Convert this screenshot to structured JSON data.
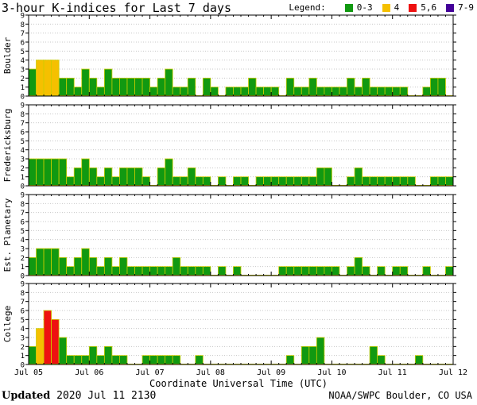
{
  "title": "3-hour K-indices for Last 7 days",
  "legend": {
    "label": "Legend:",
    "items": [
      {
        "label": "0-3",
        "color": "#119911"
      },
      {
        "label": "4",
        "color": "#f5c000"
      },
      {
        "label": "5,6",
        "color": "#ee1111"
      },
      {
        "label": "7-9",
        "color": "#440099"
      }
    ]
  },
  "footer": {
    "updated_label": "Updated",
    "updated_value": "2020 Jul 11 2130",
    "source": "NOAA/SWPC Boulder, CO USA"
  },
  "chart_data": {
    "type": "bar",
    "title": "3-hour K-indices for Last 7 days",
    "xlabel": "Coordinate Universal Time (UTC)",
    "x_tick_labels": [
      "Jul 05",
      "Jul 06",
      "Jul 07",
      "Jul 08",
      "Jul 09",
      "Jul 10",
      "Jul 11",
      "Jul 12"
    ],
    "y_tick_labels": [
      "0",
      "1",
      "2",
      "3",
      "4",
      "5",
      "6",
      "7",
      "8",
      "9"
    ],
    "ylim": [
      0,
      9
    ],
    "interval": "3-hour",
    "panels": [
      {
        "name": "Boulder",
        "values": [
          3,
          4,
          4,
          4,
          2,
          2,
          1,
          3,
          2,
          1,
          3,
          2,
          2,
          2,
          2,
          2,
          1,
          2,
          3,
          1,
          1,
          2,
          0,
          2,
          1,
          0,
          1,
          1,
          1,
          2,
          1,
          1,
          1,
          0,
          2,
          1,
          1,
          2,
          1,
          1,
          1,
          1,
          2,
          1,
          2,
          1,
          1,
          1,
          1,
          1,
          0,
          0,
          1,
          2,
          2,
          0
        ]
      },
      {
        "name": "Fredericksburg",
        "values": [
          3,
          3,
          3,
          3,
          3,
          1,
          2,
          3,
          2,
          1,
          2,
          1,
          2,
          2,
          2,
          1,
          0,
          2,
          3,
          1,
          1,
          2,
          1,
          1,
          0,
          1,
          0,
          1,
          1,
          0,
          1,
          1,
          1,
          1,
          1,
          1,
          1,
          1,
          2,
          2,
          0,
          0,
          1,
          2,
          1,
          1,
          1,
          1,
          1,
          1,
          1,
          0,
          0,
          1,
          1,
          1,
          0
        ]
      },
      {
        "name": "Est. Planetary",
        "values": [
          2,
          3,
          3,
          3,
          2,
          1,
          2,
          3,
          2,
          1,
          2,
          1,
          2,
          1,
          1,
          1,
          1,
          1,
          1,
          2,
          1,
          1,
          1,
          1,
          0,
          1,
          0,
          1,
          0,
          0,
          0,
          0,
          0,
          1,
          1,
          1,
          1,
          1,
          1,
          1,
          1,
          0,
          1,
          2,
          1,
          0,
          1,
          0,
          1,
          1,
          0,
          0,
          1,
          0,
          0,
          1
        ]
      },
      {
        "name": "College",
        "values": [
          2,
          4,
          6,
          5,
          3,
          1,
          1,
          1,
          2,
          1,
          2,
          1,
          1,
          0,
          0,
          1,
          1,
          1,
          1,
          1,
          0,
          0,
          1,
          0,
          0,
          0,
          0,
          0,
          0,
          0,
          0,
          0,
          0,
          0,
          1,
          0,
          2,
          2,
          3,
          0,
          0,
          0,
          0,
          0,
          0,
          2,
          1,
          0,
          0,
          0,
          0,
          1,
          0,
          0,
          0,
          0,
          0
        ]
      }
    ],
    "color_scale": {
      "0-3": "#119911",
      "4": "#f5c000",
      "5,6": "#ee1111",
      "7-9": "#440099"
    },
    "grid": true
  }
}
